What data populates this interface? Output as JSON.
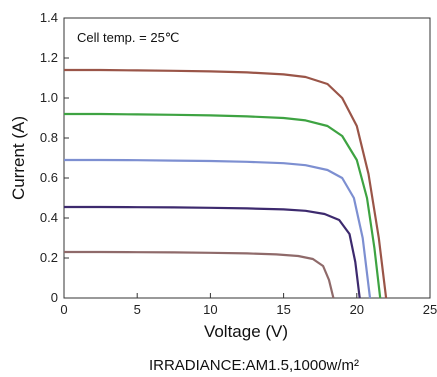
{
  "chart_data": {
    "type": "line",
    "title": "",
    "annotation": "Cell temp. = 25℃",
    "xlabel": "Voltage (V)",
    "ylabel": "Current (A)",
    "caption": "IRRADIANCE:AM1.5,1000w/m²",
    "xlim": [
      0,
      25
    ],
    "ylim": [
      0,
      1.4
    ],
    "xticks": [
      "0",
      "5",
      "10",
      "15",
      "20",
      "25"
    ],
    "yticks": [
      "0",
      "0.2",
      "0.4",
      "0.6",
      "0.8",
      "1.0",
      "1.2",
      "1.4"
    ],
    "grid": false,
    "series": [
      {
        "color": "#9a5548",
        "x": [
          0,
          2.5,
          5,
          7.5,
          10,
          12.5,
          15,
          16.5,
          18,
          19,
          20,
          20.8,
          21.5,
          22.0
        ],
        "y": [
          1.14,
          1.14,
          1.138,
          1.136,
          1.133,
          1.128,
          1.118,
          1.105,
          1.07,
          1.0,
          0.86,
          0.62,
          0.3,
          0
        ]
      },
      {
        "color": "#3ea342",
        "x": [
          0,
          2.5,
          5,
          7.5,
          10,
          12.5,
          15,
          16.5,
          18,
          19,
          20,
          20.7,
          21.2,
          21.6
        ],
        "y": [
          0.92,
          0.92,
          0.918,
          0.916,
          0.913,
          0.908,
          0.9,
          0.888,
          0.86,
          0.81,
          0.69,
          0.5,
          0.25,
          0
        ]
      },
      {
        "color": "#7d8fd1",
        "x": [
          0,
          2.5,
          5,
          7.5,
          10,
          12.5,
          15,
          16.5,
          18,
          19,
          19.8,
          20.4,
          20.9
        ],
        "y": [
          0.69,
          0.69,
          0.689,
          0.687,
          0.685,
          0.681,
          0.674,
          0.664,
          0.64,
          0.6,
          0.5,
          0.3,
          0
        ]
      },
      {
        "color": "#3d2a6e",
        "x": [
          0,
          2.5,
          5,
          7.5,
          10,
          12.5,
          15,
          16.5,
          17.8,
          18.8,
          19.5,
          19.9,
          20.2
        ],
        "y": [
          0.455,
          0.455,
          0.454,
          0.453,
          0.451,
          0.448,
          0.443,
          0.436,
          0.42,
          0.39,
          0.32,
          0.18,
          0
        ]
      },
      {
        "color": "#8f6a6a",
        "x": [
          0,
          2.5,
          5,
          7.5,
          10,
          12.5,
          14.5,
          16,
          17,
          17.7,
          18.1,
          18.4
        ],
        "y": [
          0.23,
          0.23,
          0.229,
          0.228,
          0.226,
          0.223,
          0.218,
          0.21,
          0.195,
          0.16,
          0.09,
          0
        ]
      }
    ]
  }
}
